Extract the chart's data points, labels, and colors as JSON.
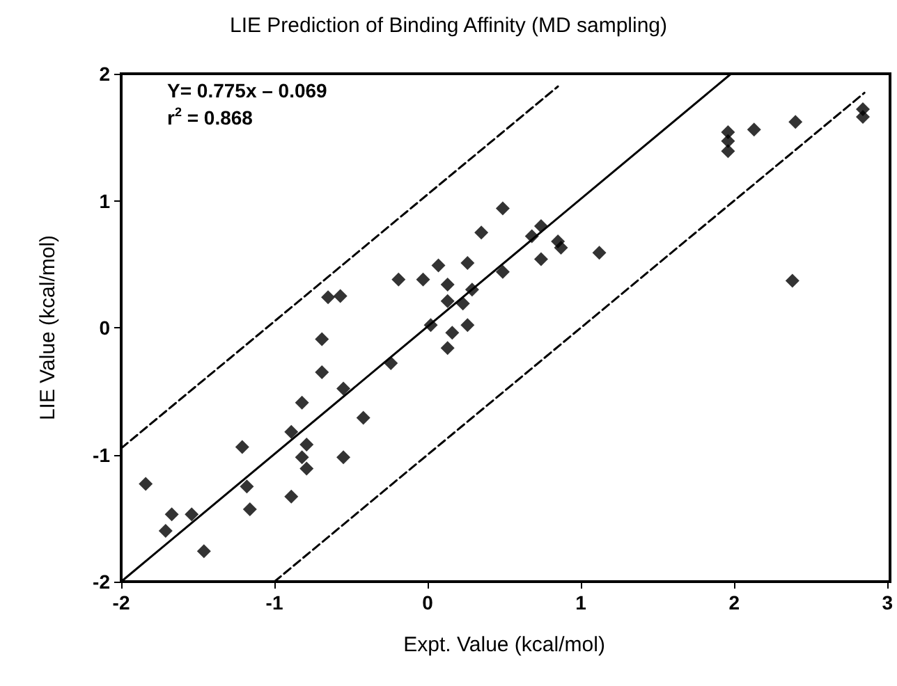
{
  "chart_data": {
    "type": "scatter",
    "title": "LIE Prediction of Binding Affinity (MD sampling)",
    "xlabel": "Expt. Value (kcal/mol)",
    "ylabel": "LIE Value (kcal/mol)",
    "annotations": [
      "Y= 0.775x – 0.069",
      "r$^{2}$ = 0.868"
    ],
    "xlim": [
      -2,
      3
    ],
    "ylim": [
      -2,
      2
    ],
    "xticks": [
      -2,
      -1,
      0,
      1,
      2,
      3
    ],
    "yticks": [
      -2,
      -1,
      0,
      1,
      2
    ],
    "grid": false,
    "marker": "diamond",
    "series": [
      {
        "color": "#000000",
        "x": [
          -0.69,
          -0.69,
          -0.82,
          -0.55,
          -0.42,
          -0.89,
          -0.79,
          -0.82,
          -0.79,
          -0.55,
          -1.21,
          -1.84,
          -1.18,
          -0.89,
          -1.16,
          -1.67,
          -1.54,
          -1.71,
          -1.46,
          -0.24,
          -0.65,
          -0.57,
          0.49,
          0.35,
          0.74,
          0.68,
          0.85,
          0.87,
          0.74,
          1.12,
          0.07,
          0.26,
          -0.19,
          -0.03,
          0.13,
          0.29,
          0.49,
          0.13,
          0.23,
          0.02,
          0.26,
          0.16,
          0.13,
          1.96,
          1.96,
          1.96,
          2.13,
          2.4,
          2.84,
          2.84,
          2.38
        ],
        "values": [
          -0.09,
          -0.35,
          -0.59,
          -0.48,
          -0.71,
          -0.82,
          -0.92,
          -1.02,
          -1.11,
          -1.02,
          -0.94,
          -1.23,
          -1.25,
          -1.33,
          -1.43,
          -1.47,
          -1.47,
          -1.6,
          -1.76,
          -0.28,
          0.24,
          0.25,
          0.94,
          0.75,
          0.8,
          0.72,
          0.68,
          0.63,
          0.54,
          0.59,
          0.49,
          0.51,
          0.38,
          0.38,
          0.34,
          0.3,
          0.44,
          0.21,
          0.19,
          0.02,
          0.02,
          -0.04,
          -0.16,
          1.54,
          1.47,
          1.39,
          1.56,
          1.62,
          1.72,
          1.66,
          0.37
        ]
      },
      {
        "type": "line",
        "color": "#000000",
        "line_style": "solid",
        "marker": "none",
        "x": [
          -2,
          1.98
        ],
        "values": [
          -2,
          2
        ]
      },
      {
        "type": "line",
        "color": "#000000",
        "line_style": "dashed",
        "marker": "none",
        "x": [
          -2,
          0.85
        ],
        "values": [
          -0.95,
          1.9
        ]
      },
      {
        "type": "line",
        "color": "#000000",
        "line_style": "dashed",
        "marker": "none",
        "x": [
          -1,
          2.85
        ],
        "values": [
          -2,
          1.85
        ]
      }
    ]
  }
}
